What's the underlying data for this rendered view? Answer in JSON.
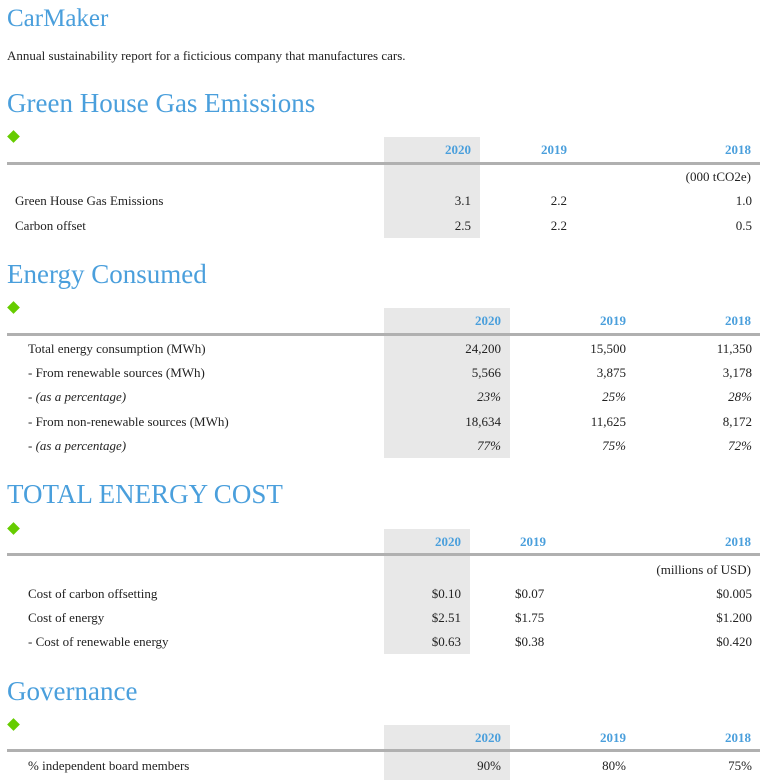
{
  "brand": "CarMaker",
  "description": "Annual sustainability report for a ficticious company that manufactures cars.",
  "sections": [
    {
      "title": "Green House Gas Emissions",
      "years": [
        "2020",
        "2019",
        "2018"
      ],
      "unit": "(000 tCO2e)",
      "rows": [
        {
          "label": "Green House Gas Emissions",
          "values": [
            "3.1",
            "2.2",
            "1.0"
          ]
        },
        {
          "label": "Carbon offset",
          "values": [
            "2.5",
            "2.2",
            "0.5"
          ]
        }
      ]
    },
    {
      "title": "Energy Consumed",
      "years": [
        "2020",
        "2019",
        "2018"
      ],
      "rows": [
        {
          "label": "Total energy consumption (MWh)",
          "values": [
            "24,200",
            "15,500",
            "11,350"
          ]
        },
        {
          "label": "- From renewable sources (MWh)",
          "values": [
            "5,566",
            "3,875",
            "3,178"
          ]
        },
        {
          "label": "- (as a percentage)",
          "values": [
            "23%",
            "25%",
            "28%"
          ]
        },
        {
          "label": "- From non-renewable sources (MWh)",
          "values": [
            "18,634",
            "11,625",
            "8,172"
          ]
        },
        {
          "label": "- (as a percentage)",
          "values": [
            "77%",
            "75%",
            "72%"
          ]
        }
      ]
    },
    {
      "title": "TOTAL ENERGY COST",
      "years": [
        "2020",
        "2019",
        "2018"
      ],
      "unit": "(millions of USD)",
      "rows": [
        {
          "label": "Cost of carbon offsetting",
          "values": [
            "$0.10",
            "$0.07",
            "$0.005"
          ]
        },
        {
          "label": "Cost of energy",
          "values": [
            "$2.51",
            "$1.75",
            "$1.200"
          ]
        },
        {
          "label": "- Cost of renewable energy",
          "values": [
            "$0.63",
            "$0.38",
            "$0.420"
          ]
        }
      ]
    },
    {
      "title": "Governance",
      "years": [
        "2020",
        "2019",
        "2018"
      ],
      "rows": [
        {
          "label": "% independent board members",
          "values": [
            "90%",
            "80%",
            "75%"
          ]
        }
      ]
    }
  ],
  "colors": {
    "heading": "#4a9fdc",
    "diamond": "#66cc00",
    "shade": "#e8e8e8",
    "rule": "#b0b0b0"
  }
}
